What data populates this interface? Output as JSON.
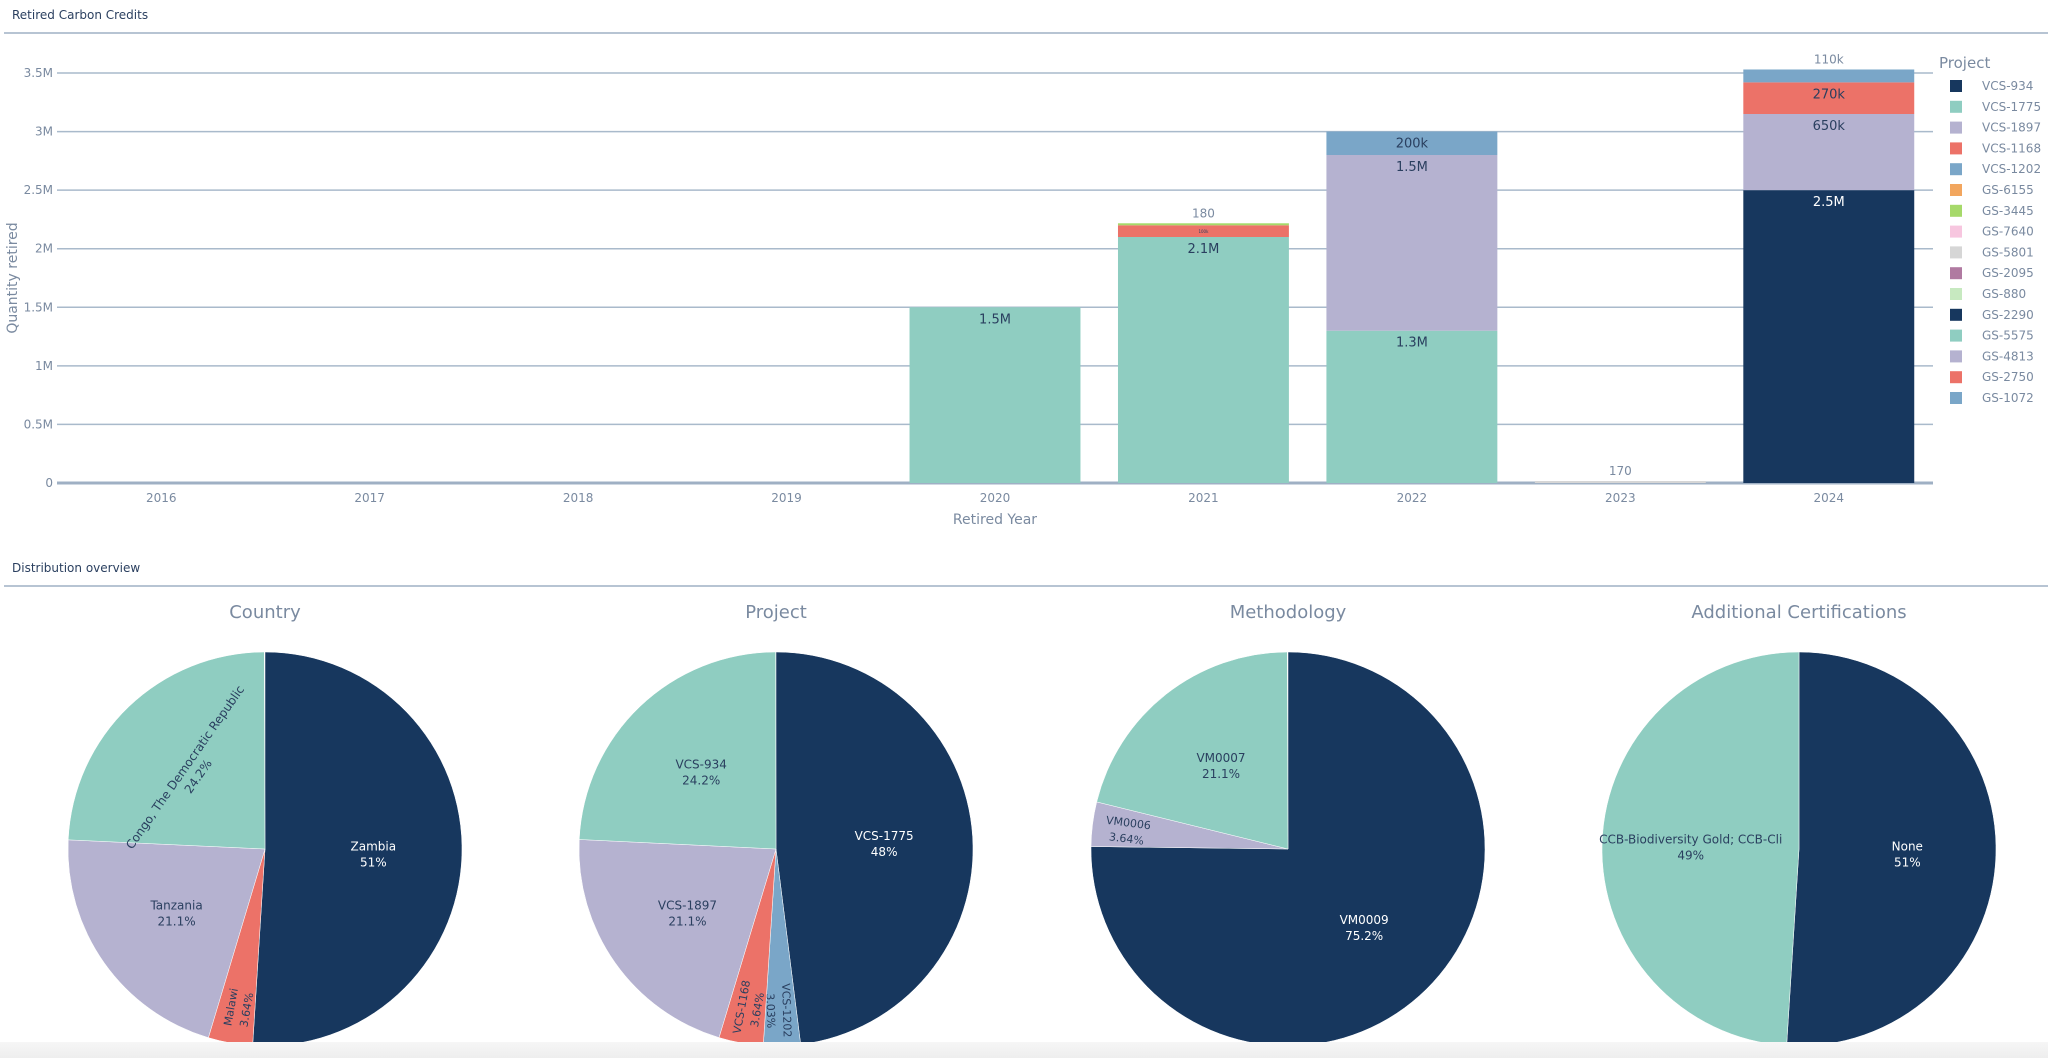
{
  "sections": {
    "bar_title": "Retired Carbon Credits",
    "pie_title": "Distribution overview"
  },
  "colors": {
    "navy": "#17375e",
    "teal": "#8fcdc1",
    "lavender": "#b5b2d0",
    "red": "#ec7268",
    "steel": "#7aa6c8",
    "orange": "#f2a65e",
    "green": "#a6d96a",
    "pink": "#f7c6df",
    "grey": "#d6d6d6",
    "purple": "#b07aa1",
    "mint": "#c7e9c0"
  },
  "chart_data": [
    {
      "type": "bar",
      "stacked": true,
      "title": "Retired Carbon Credits",
      "xlabel": "Retired Year",
      "ylabel": "Quantity retired",
      "ylim": [
        0,
        3500000
      ],
      "yticks": [
        0,
        500000,
        1000000,
        1500000,
        2000000,
        2500000,
        3000000,
        3500000
      ],
      "ytick_labels": [
        "0",
        "0.5M",
        "1M",
        "1.5M",
        "2M",
        "2.5M",
        "3M",
        "3.5M"
      ],
      "categories": [
        "2016",
        "2017",
        "2018",
        "2019",
        "2020",
        "2021",
        "2022",
        "2023",
        "2024"
      ],
      "legend_title": "Project",
      "legend_position": "right",
      "legend": [
        {
          "name": "VCS-934",
          "color": "#17375e"
        },
        {
          "name": "VCS-1775",
          "color": "#8fcdc1"
        },
        {
          "name": "VCS-1897",
          "color": "#b5b2d0"
        },
        {
          "name": "VCS-1168",
          "color": "#ec7268"
        },
        {
          "name": "VCS-1202",
          "color": "#7aa6c8"
        },
        {
          "name": "GS-6155",
          "color": "#f2a65e"
        },
        {
          "name": "GS-3445",
          "color": "#a6d96a"
        },
        {
          "name": "GS-7640",
          "color": "#f7c6df"
        },
        {
          "name": "GS-5801",
          "color": "#d6d6d6"
        },
        {
          "name": "GS-2095",
          "color": "#b07aa1"
        },
        {
          "name": "GS-880",
          "color": "#c7e9c0"
        },
        {
          "name": "GS-2290",
          "color": "#17375e"
        },
        {
          "name": "GS-5575",
          "color": "#8fcdc1"
        },
        {
          "name": "GS-4813",
          "color": "#b5b2d0"
        },
        {
          "name": "GS-2750",
          "color": "#ec7268"
        },
        {
          "name": "GS-1072",
          "color": "#7aa6c8"
        }
      ],
      "bars": [
        {
          "year": "2020",
          "segments": [
            {
              "project": "VCS-1775",
              "value": 1500000,
              "label": "1.5M"
            }
          ]
        },
        {
          "year": "2021",
          "segments": [
            {
              "project": "VCS-1775",
              "value": 2100000,
              "label": "2.1M"
            },
            {
              "project": "VCS-1168",
              "value": 100000,
              "label": "100k"
            },
            {
              "project": "GS-3445",
              "value": 180,
              "label": "180",
              "outside": true
            }
          ]
        },
        {
          "year": "2022",
          "segments": [
            {
              "project": "VCS-1775",
              "value": 1300000,
              "label": "1.3M"
            },
            {
              "project": "VCS-1897",
              "value": 1500000,
              "label": "1.5M"
            },
            {
              "project": "VCS-1202",
              "value": 200000,
              "label": "200k"
            }
          ]
        },
        {
          "year": "2023",
          "segments": [
            {
              "project": "GS-5801",
              "value": 170,
              "label": "170",
              "outside": true
            }
          ]
        },
        {
          "year": "2024",
          "segments": [
            {
              "project": "VCS-934",
              "value": 2500000,
              "label": "2.5M"
            },
            {
              "project": "VCS-1897",
              "value": 650000,
              "label": "650k"
            },
            {
              "project": "VCS-1168",
              "value": 270000,
              "label": "270k"
            },
            {
              "project": "VCS-1202",
              "value": 110000,
              "label": "110k",
              "outside": true
            }
          ]
        }
      ]
    },
    {
      "type": "pie",
      "title": "Country",
      "slices": [
        {
          "label": "Zambia",
          "percent": 51,
          "text": "51%",
          "color": "#17375e"
        },
        {
          "label": "Malawi",
          "percent": 3.64,
          "text": "3.64%",
          "color": "#ec7268"
        },
        {
          "label": "Tanzania",
          "percent": 21.1,
          "text": "21.1%",
          "color": "#b5b2d0"
        },
        {
          "label": "Congo, The Democratic Republic",
          "percent": 24.2,
          "text": "24.2%",
          "color": "#8fcdc1"
        }
      ]
    },
    {
      "type": "pie",
      "title": "Project",
      "slices": [
        {
          "label": "VCS-1775",
          "percent": 48,
          "text": "48%",
          "color": "#17375e"
        },
        {
          "label": "VCS-1202",
          "percent": 3.03,
          "text": "3.03%",
          "color": "#7aa6c8"
        },
        {
          "label": "VCS-1168",
          "percent": 3.64,
          "text": "3.64%",
          "color": "#ec7268"
        },
        {
          "label": "VCS-1897",
          "percent": 21.1,
          "text": "21.1%",
          "color": "#b5b2d0"
        },
        {
          "label": "VCS-934",
          "percent": 24.2,
          "text": "24.2%",
          "color": "#8fcdc1"
        }
      ]
    },
    {
      "type": "pie",
      "title": "Methodology",
      "slices": [
        {
          "label": "VM0009",
          "percent": 75.2,
          "text": "75.2%",
          "color": "#17375e"
        },
        {
          "label": "VM0006",
          "percent": 3.64,
          "text": "3.64%",
          "color": "#b5b2d0"
        },
        {
          "label": "VM0007",
          "percent": 21.1,
          "text": "21.1%",
          "color": "#8fcdc1"
        }
      ]
    },
    {
      "type": "pie",
      "title": "Additional Certifications",
      "slices": [
        {
          "label": "None",
          "percent": 51,
          "text": "51%",
          "color": "#17375e"
        },
        {
          "label": "CCB-Biodiversity Gold; CCB-Cli",
          "percent": 49,
          "text": "49%",
          "color": "#8fcdc1"
        }
      ]
    }
  ]
}
